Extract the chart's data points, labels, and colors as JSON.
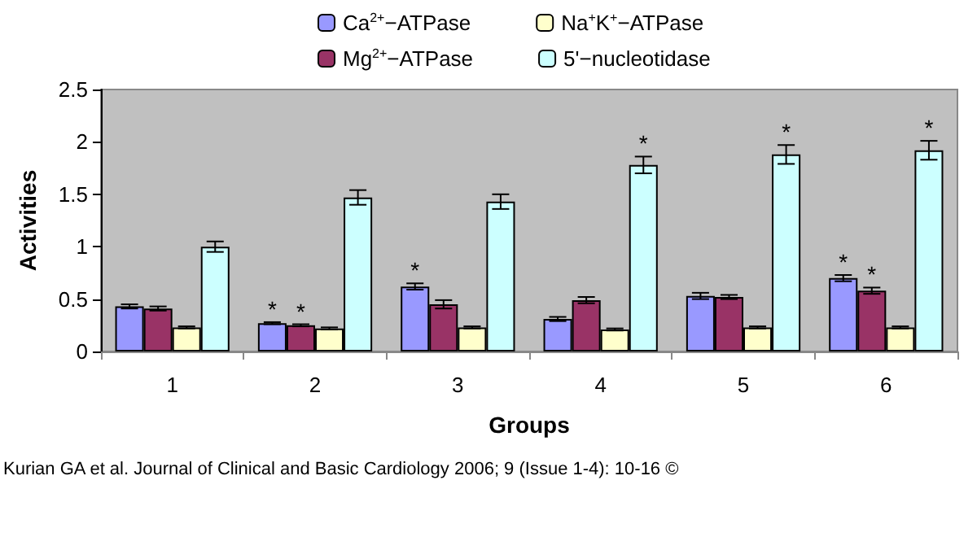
{
  "chart_data": {
    "type": "bar",
    "xlabel": "Groups",
    "ylabel": "Activities",
    "categories": [
      "1",
      "2",
      "3",
      "4",
      "5",
      "6"
    ],
    "series": [
      {
        "name": "Ca$^{2+}$−ATPase",
        "color": "#9999ff",
        "values": [
          0.43,
          0.27,
          0.62,
          0.31,
          0.53,
          0.7
        ],
        "errors": [
          0.02,
          0.01,
          0.03,
          0.02,
          0.03,
          0.03
        ],
        "value_labels": [
          null,
          "*",
          "*",
          null,
          null,
          "*"
        ]
      },
      {
        "name": "Mg$^{2+}$−ATPase",
        "color": "#993366",
        "values": [
          0.41,
          0.25,
          0.45,
          0.49,
          0.52,
          0.58
        ],
        "errors": [
          0.02,
          0.01,
          0.04,
          0.03,
          0.02,
          0.03
        ],
        "value_labels": [
          null,
          "*",
          null,
          null,
          null,
          "*"
        ]
      },
      {
        "name": "Na$^{+}$K$^{+}$−ATPase",
        "color": "#ffffcc",
        "values": [
          0.23,
          0.22,
          0.23,
          0.21,
          0.23,
          0.23
        ],
        "errors": [
          0.01,
          0.01,
          0.01,
          0.01,
          0.01,
          0.01
        ]
      },
      {
        "name": "5'−nucleotidase",
        "color": "#ccffff",
        "values": [
          1.0,
          1.47,
          1.43,
          1.78,
          1.88,
          1.92
        ],
        "errors": [
          0.05,
          0.07,
          0.07,
          0.08,
          0.09,
          0.09
        ],
        "value_labels": [
          null,
          null,
          null,
          "*",
          "*",
          "*"
        ]
      }
    ],
    "ylim": [
      0,
      2.5
    ],
    "yticks": [
      0,
      0.5,
      1,
      1.5,
      2,
      2.5
    ],
    "grid": false,
    "legend": "top",
    "annotations": [
      "Kurian GA et al. Journal of Clinical and Basic Cardiology 2006; 9 (Issue 1-4): 10-16 ©"
    ]
  }
}
